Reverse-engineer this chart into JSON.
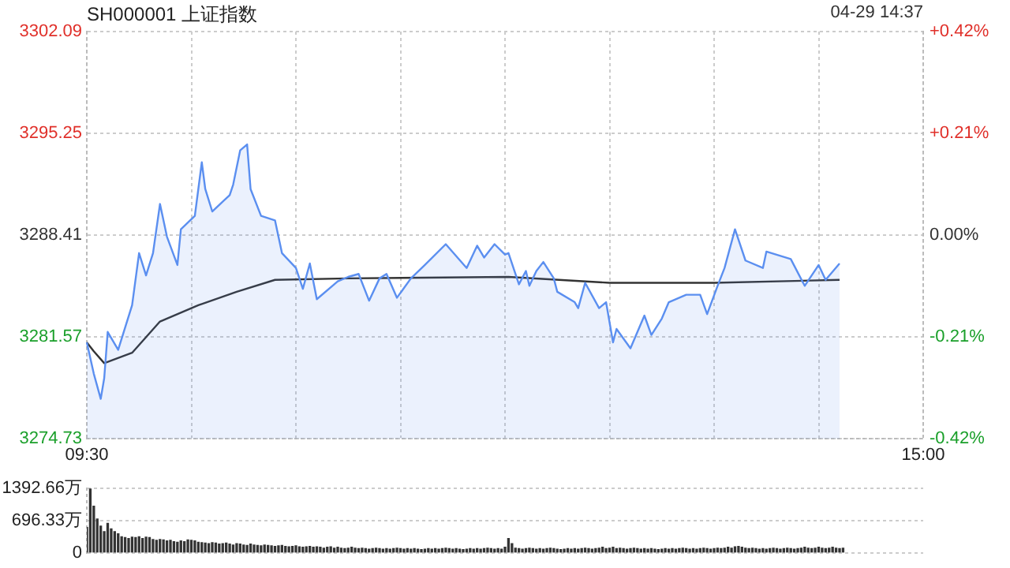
{
  "chart_data": [
    {
      "type": "line",
      "title": "SH000001 上证指数",
      "annotations": [
        "04-29 14:37"
      ],
      "categories": [
        "09:30",
        null,
        null,
        null,
        null,
        null,
        null,
        null,
        null,
        null,
        null,
        null,
        null,
        null,
        null,
        null,
        null,
        null,
        null,
        null,
        null,
        null,
        null,
        null,
        null,
        null,
        null,
        null,
        null,
        null,
        null,
        null,
        null,
        null,
        null,
        null,
        null,
        null,
        null,
        null,
        null,
        null,
        null,
        null,
        null,
        null,
        null,
        null,
        null,
        null,
        null,
        null,
        null,
        null,
        null,
        null,
        null,
        null,
        null,
        null,
        null,
        null,
        null,
        null,
        null,
        null,
        null,
        null,
        null,
        null,
        null,
        null,
        null,
        null,
        null,
        null,
        null,
        null,
        null,
        null,
        null,
        null,
        null,
        null,
        null,
        null,
        null,
        null,
        null,
        null,
        null,
        null,
        null,
        null,
        null,
        null,
        null,
        null,
        null,
        null,
        null,
        null,
        null,
        null,
        null,
        null,
        null,
        null,
        null,
        null,
        null,
        null,
        null,
        null,
        null,
        null,
        null,
        null,
        null,
        null,
        null,
        null,
        null,
        null,
        null,
        null,
        null,
        null,
        null,
        null,
        null,
        null,
        null,
        null,
        null,
        null,
        null,
        null,
        null,
        null,
        null,
        null,
        null,
        null,
        null,
        null,
        null,
        null,
        null,
        null,
        null,
        null,
        null,
        null,
        null,
        null,
        null,
        null,
        null,
        null,
        null,
        null,
        null,
        null,
        null,
        null,
        null,
        null,
        null,
        null,
        null,
        null,
        null,
        null,
        null,
        null,
        null,
        null,
        null,
        null,
        null,
        null,
        null,
        null,
        null,
        null,
        null,
        null,
        null,
        null,
        null,
        null,
        null,
        null,
        null,
        null,
        null,
        null,
        null,
        null,
        null,
        null,
        null,
        null,
        null,
        null,
        null,
        null,
        null,
        null,
        null,
        null,
        null,
        null,
        null,
        null,
        null,
        null,
        null,
        null,
        null,
        null,
        null,
        null,
        null,
        null,
        null,
        null,
        null,
        null,
        null,
        null,
        null,
        null,
        null,
        null,
        null,
        null,
        null,
        null,
        "15:00"
      ],
      "ylim": [
        3274.73,
        3302.09
      ],
      "yticks": [
        3274.73,
        3281.57,
        3288.41,
        3295.25,
        3302.09
      ],
      "y2lim": [
        -0.42,
        0.42
      ],
      "y2ticks": [
        {
          "value": -0.42,
          "label": "-0.42%"
        },
        {
          "value": -0.21,
          "label": "-0.21%"
        },
        {
          "value": 0,
          "label": "0.00%"
        },
        {
          "value": 0.21,
          "label": "+0.21%"
        },
        {
          "value": 0.42,
          "label": "+0.42%"
        }
      ],
      "grid": true,
      "legend": false,
      "marker": "none",
      "series": [
        {
          "type": "area",
          "color": "#5b8ff0",
          "values": [
            3281.2,
            null,
            3279.1,
            null,
            3277.4,
            3278.8,
            3281.9,
            null,
            null,
            3280.7,
            null,
            null,
            null,
            3283.7,
            null,
            3287.2,
            null,
            3285.7,
            null,
            3287.2,
            null,
            3290.5,
            null,
            3288.3,
            null,
            null,
            3286.4,
            3288.8,
            null,
            null,
            null,
            3289.7,
            null,
            3293.3,
            3291.5,
            null,
            3290.0,
            null,
            null,
            null,
            null,
            3291.1,
            3291.8,
            null,
            3294.1,
            null,
            3294.5,
            3291.5,
            null,
            null,
            3289.7,
            null,
            null,
            null,
            3289.4,
            null,
            3287.2,
            null,
            null,
            null,
            3286.2,
            null,
            3284.8,
            null,
            3286.5,
            null,
            3284.1,
            null,
            null,
            null,
            null,
            null,
            3285.3,
            null,
            null,
            3285.6,
            null,
            null,
            3285.8,
            null,
            null,
            3284.0,
            null,
            null,
            3285.5,
            null,
            3285.8,
            null,
            null,
            3284.2,
            null,
            null,
            null,
            3285.5,
            null,
            null,
            null,
            3286.4,
            null,
            null,
            null,
            null,
            null,
            3287.8,
            null,
            null,
            null,
            null,
            null,
            3286.2,
            null,
            null,
            3287.7,
            null,
            3286.9,
            null,
            null,
            3287.8,
            null,
            null,
            3287.1,
            3287.2,
            null,
            null,
            3285.1,
            null,
            3286.0,
            3285.0,
            null,
            3286.0,
            null,
            3286.6,
            null,
            null,
            3285.5,
            3284.6,
            null,
            null,
            null,
            null,
            3283.9,
            3283.5,
            null,
            3285.2,
            null,
            null,
            null,
            3283.5,
            null,
            3283.9,
            null,
            3281.2,
            3282.1,
            null,
            null,
            null,
            3280.8,
            null,
            null,
            null,
            3283.0,
            null,
            3281.7,
            null,
            null,
            3282.8,
            null,
            3283.9,
            null,
            null,
            null,
            null,
            3284.4,
            null,
            null,
            null,
            3284.4,
            null,
            3283.1,
            null,
            null,
            3285.0,
            null,
            3286.2,
            null,
            null,
            3288.8,
            null,
            null,
            3286.7,
            null,
            null,
            null,
            null,
            3286.2,
            3287.3,
            null,
            null,
            null,
            null,
            null,
            null,
            3286.8,
            null,
            null,
            null,
            3285.0,
            null,
            null,
            null,
            3286.4,
            null,
            3285.4,
            null,
            null,
            null,
            3286.5,
            null,
            null,
            null,
            null,
            null,
            null,
            null,
            null,
            null,
            null,
            null,
            null,
            null,
            null,
            null,
            null,
            null,
            null,
            null,
            null,
            null,
            null,
            null,
            null
          ]
        },
        {
          "type": "line",
          "color": "#333333",
          "values": [
            3281.2,
            null,
            3280.6,
            null,
            null,
            3279.8,
            null,
            null,
            null,
            null,
            null,
            null,
            null,
            3280.5,
            null,
            null,
            null,
            null,
            null,
            null,
            null,
            3282.6,
            null,
            null,
            null,
            null,
            null,
            null,
            null,
            null,
            null,
            null,
            3283.7,
            null,
            null,
            null,
            null,
            null,
            null,
            null,
            null,
            null,
            null,
            3284.6,
            null,
            null,
            null,
            null,
            null,
            null,
            null,
            null,
            null,
            null,
            3285.4,
            null,
            null,
            null,
            null,
            null,
            null,
            null,
            null,
            null,
            null,
            null,
            null,
            null,
            null,
            null,
            null,
            null,
            null,
            null,
            null,
            3285.5,
            null,
            null,
            null,
            null,
            null,
            null,
            null,
            null,
            null,
            null,
            null,
            null,
            null,
            null,
            null,
            null,
            null,
            null,
            null,
            null,
            null,
            null,
            null,
            null,
            null,
            null,
            null,
            null,
            null,
            null,
            null,
            null,
            null,
            null,
            null,
            null,
            null,
            null,
            null,
            null,
            null,
            null,
            null,
            null,
            null,
            3285.6,
            null,
            null,
            null,
            null,
            null,
            null,
            null,
            null,
            null,
            null,
            null,
            null,
            null,
            null,
            null,
            null,
            null,
            null,
            null,
            null,
            null,
            null,
            null,
            null,
            null,
            null,
            null,
            null,
            3285.2,
            null,
            null,
            null,
            null,
            null,
            null,
            null,
            null,
            null,
            null,
            null,
            null,
            null,
            null,
            null,
            null,
            null,
            null,
            null,
            null,
            null,
            null,
            null,
            null,
            null,
            null,
            null,
            null,
            null,
            3285.2,
            null,
            null,
            null,
            null,
            null,
            null,
            null,
            null,
            null,
            null,
            null,
            null,
            null,
            null,
            null,
            null,
            null,
            null,
            null,
            null,
            null,
            null,
            null,
            null,
            null,
            null,
            null,
            null,
            null,
            null,
            null,
            null,
            null,
            null,
            null,
            3285.4,
            null,
            null,
            null,
            null,
            null,
            null,
            null,
            null,
            null,
            null,
            null,
            null,
            null,
            null,
            null,
            null,
            null,
            null,
            null,
            null,
            null,
            null,
            null,
            null
          ]
        }
      ]
    },
    {
      "type": "bar",
      "tick_labels": "y",
      "grid": "y",
      "legend": false,
      "color": "#333333",
      "categories": [
        null,
        null,
        null,
        null,
        null,
        null,
        null,
        null,
        null,
        null,
        null,
        null,
        null,
        null,
        null,
        null,
        null,
        null,
        null,
        null,
        null,
        null,
        null,
        null,
        null,
        null,
        null,
        null,
        null,
        null,
        null,
        null,
        null,
        null,
        null,
        null,
        null,
        null,
        null,
        null,
        null,
        null,
        null,
        null,
        null,
        null,
        null,
        null,
        null,
        null,
        null,
        null,
        null,
        null,
        null,
        null,
        null,
        null,
        null,
        null,
        null,
        null,
        null,
        null,
        null,
        null,
        null,
        null,
        null,
        null,
        null,
        null,
        null,
        null,
        null,
        null,
        null,
        null,
        null,
        null,
        null,
        null,
        null,
        null,
        null,
        null,
        null,
        null,
        null,
        null,
        null,
        null,
        null,
        null,
        null,
        null,
        null,
        null,
        null,
        null,
        null,
        null,
        null,
        null,
        null,
        null,
        null,
        null,
        null,
        null,
        null,
        null,
        null,
        null,
        null,
        null,
        null,
        null,
        null,
        null,
        null,
        null,
        null,
        null,
        null,
        null,
        null,
        null,
        null,
        null,
        null,
        null,
        null,
        null,
        null,
        null,
        null,
        null,
        null,
        null,
        null,
        null,
        null,
        null,
        null,
        null,
        null,
        null,
        null,
        null,
        null,
        null,
        null,
        null,
        null,
        null,
        null,
        null,
        null,
        null,
        null,
        null,
        null,
        null,
        null,
        null,
        null,
        null,
        null,
        null,
        null,
        null,
        null,
        null,
        null,
        null,
        null,
        null,
        null,
        null,
        null,
        null,
        null,
        null,
        null,
        null,
        null,
        null,
        null,
        null,
        null,
        null,
        null,
        null,
        null,
        null,
        null,
        null,
        null,
        null,
        null,
        null,
        null,
        null,
        null,
        null,
        null,
        null,
        null,
        null,
        null,
        null,
        null,
        null,
        null,
        null,
        null,
        null,
        null,
        null,
        null,
        null,
        null,
        null,
        null,
        null,
        null,
        null,
        null,
        null,
        null,
        null,
        null,
        null,
        null,
        null,
        null,
        null,
        null,
        null,
        null
      ],
      "ylim": [
        0,
        1392.66
      ],
      "yticks": [
        {
          "value": 0,
          "label": "0"
        },
        {
          "value": 696.33,
          "label": "696.33万"
        },
        {
          "value": 1392.66,
          "label": "1392.66万"
        }
      ],
      "values": [
        550,
        1392.66,
        1010,
        730,
        580,
        460,
        640,
        520,
        460,
        410,
        350,
        330,
        310,
        340,
        330,
        350,
        310,
        340,
        330,
        290,
        270,
        290,
        280,
        260,
        270,
        240,
        230,
        260,
        240,
        280,
        270,
        260,
        230,
        220,
        210,
        200,
        220,
        210,
        190,
        200,
        210,
        190,
        170,
        200,
        190,
        170,
        160,
        190,
        170,
        160,
        150,
        170,
        160,
        150,
        140,
        150,
        160,
        140,
        130,
        140,
        150,
        130,
        120,
        130,
        140,
        120,
        130,
        120,
        100,
        120,
        130,
        100,
        120,
        100,
        90,
        100,
        120,
        100,
        90,
        100,
        90,
        80,
        90,
        100,
        90,
        80,
        90,
        80,
        90,
        100,
        90,
        80,
        90,
        80,
        90,
        80,
        70,
        80,
        90,
        80,
        90,
        80,
        90,
        100,
        90,
        80,
        90,
        80,
        70,
        80,
        90,
        80,
        90,
        80,
        90,
        100,
        90,
        80,
        90,
        80,
        120,
        310,
        200,
        100,
        90,
        80,
        90,
        100,
        90,
        80,
        90,
        80,
        90,
        100,
        90,
        80,
        70,
        80,
        90,
        80,
        90,
        80,
        90,
        100,
        90,
        80,
        90,
        100,
        120,
        90,
        100,
        120,
        90,
        100,
        90,
        80,
        90,
        100,
        90,
        80,
        90,
        80,
        90,
        80,
        70,
        80,
        90,
        80,
        90,
        80,
        90,
        100,
        90,
        80,
        90,
        80,
        90,
        100,
        90,
        80,
        90,
        100,
        90,
        100,
        120,
        100,
        130,
        140,
        120,
        100,
        90,
        100,
        90,
        80,
        90,
        80,
        90,
        100,
        90,
        80,
        90,
        100,
        90,
        80,
        90,
        100,
        120,
        100,
        90,
        100,
        120,
        100,
        90,
        100,
        120,
        100,
        90,
        100,
        null,
        null,
        null,
        null,
        null,
        null,
        null,
        null,
        null,
        null,
        null,
        null,
        null,
        null,
        null,
        null,
        null,
        null,
        null,
        null,
        null,
        null,
        null
      ]
    }
  ]
}
